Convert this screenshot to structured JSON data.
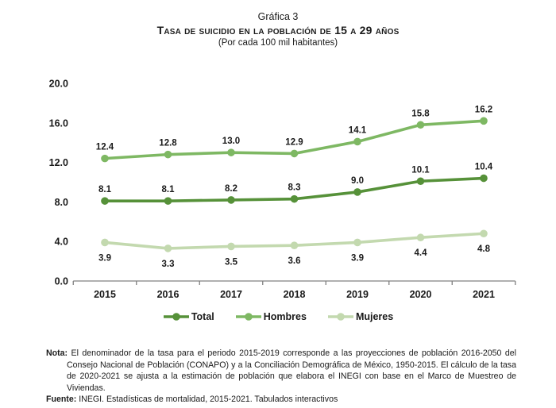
{
  "title": {
    "kicker": "Gráfica 3",
    "main": "Tasa de suicidio en la población de 15 a 29 años",
    "subtitle": "(Por cada 100 mil habitantes)"
  },
  "chart_data": {
    "type": "line",
    "categories": [
      "2015",
      "2016",
      "2017",
      "2018",
      "2019",
      "2020",
      "2021"
    ],
    "series": [
      {
        "name": "Total",
        "values": [
          8.1,
          8.1,
          8.2,
          8.3,
          9.0,
          10.1,
          10.4
        ],
        "color": "#569139",
        "label_position": "above"
      },
      {
        "name": "Hombres",
        "values": [
          12.4,
          12.8,
          13.0,
          12.9,
          14.1,
          15.8,
          16.2
        ],
        "color": "#7EB863",
        "label_position": "above"
      },
      {
        "name": "Mujeres",
        "values": [
          3.9,
          3.3,
          3.5,
          3.6,
          3.9,
          4.4,
          4.8
        ],
        "color": "#C3D9AF",
        "label_position": "below"
      }
    ],
    "title": "Tasa de suicidio en la población de 15 a 29 años",
    "subtitle": "(Por cada 100 mil habitantes)",
    "xlabel": "",
    "ylabel": "",
    "ylim": [
      0,
      20
    ],
    "ytick_step": 4,
    "ytick_labels": [
      "0.0",
      "4.0",
      "8.0",
      "12.0",
      "16.0",
      "20.0"
    ],
    "grid": false,
    "legend_position": "bottom",
    "axis_color": "#808080",
    "data_label_color": "#1a1a1a",
    "data_labels_decimals": 1
  },
  "notes": {
    "nota_label": "Nota:",
    "nota_text": "El denominador de la tasa para el periodo 2015-2019 corresponde a las proyecciones de población 2016-2050 del Consejo Nacional de Población (CONAPO) y a la Conciliación Demográfica de México, 1950-2015. El cálculo de la tasa de 2020-2021 se ajusta a la estimación de población que elabora el INEGI con base en el Marco de Muestreo de Viviendas.",
    "fuente_label": "Fuente:",
    "fuente_text": "INEGI. Estadísticas de mortalidad, 2015-2021. Tabulados interactivos"
  }
}
